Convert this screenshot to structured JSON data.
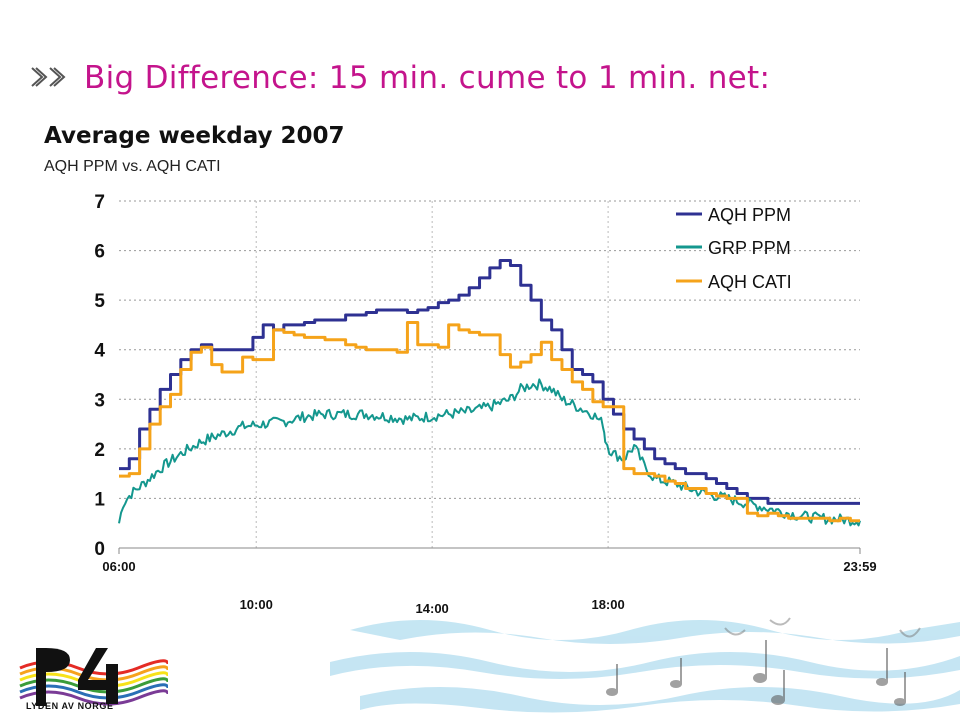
{
  "slide": {
    "title": "Big Difference: 15 min. cume to 1 min. net:",
    "bullet_icon": "double-chevron-icon"
  },
  "logo": {
    "tagline": "LYDEN AV NORGE",
    "brand_mark": "P4"
  },
  "colors": {
    "title": "#c4148c",
    "aqh_ppm": "#2e3192",
    "grp_ppm": "#14978e",
    "aqh_cati": "#f5a31a",
    "wave": "#9fd3ea"
  },
  "chart_data": {
    "type": "line",
    "title": "Average weekday 2007",
    "subtitle": "AQH PPM vs. AQH CATI",
    "xlabel": "",
    "ylabel": "",
    "ylim": [
      0,
      7
    ],
    "y_ticks": [
      0,
      1,
      2,
      3,
      4,
      5,
      6,
      7
    ],
    "xlim_hours": [
      6.0,
      23.9833
    ],
    "x_tick_labels_bottom": [
      {
        "label": "06:00",
        "hour": 6.0
      },
      {
        "label": "23:59",
        "hour": 23.9833
      }
    ],
    "x_tick_labels_lower": [
      {
        "label": "10:00",
        "hour": 10.0
      },
      {
        "label": "14:00",
        "hour": 14.0
      },
      {
        "label": "18:00",
        "hour": 18.0
      }
    ],
    "vertical_gridlines_hours": [
      9.33,
      13.6,
      17.87
    ],
    "grid": "dotted horizontal and vertical",
    "legend_position": "top-right",
    "series": [
      {
        "name": "AQH PPM",
        "style": "step",
        "color": "#2e3192",
        "x_hours": [
          6.0,
          6.25,
          6.5,
          6.75,
          7.0,
          7.25,
          7.5,
          7.75,
          8.0,
          8.25,
          8.5,
          8.75,
          9.0,
          9.25,
          9.5,
          9.75,
          10.0,
          10.25,
          10.5,
          10.75,
          11.0,
          11.25,
          11.5,
          11.75,
          12.0,
          12.25,
          12.5,
          12.75,
          13.0,
          13.25,
          13.5,
          13.75,
          14.0,
          14.25,
          14.5,
          14.75,
          15.0,
          15.25,
          15.5,
          15.75,
          16.0,
          16.25,
          16.5,
          16.75,
          17.0,
          17.25,
          17.5,
          17.75,
          18.0,
          18.25,
          18.5,
          18.75,
          19.0,
          19.25,
          19.5,
          19.75,
          20.0,
          20.25,
          20.5,
          20.75,
          21.0,
          21.25,
          21.5,
          21.75,
          22.0,
          22.25,
          22.5,
          22.75,
          23.0,
          23.25,
          23.5,
          23.75,
          24.0
        ],
        "values": [
          1.6,
          1.8,
          2.4,
          2.8,
          3.2,
          3.5,
          3.8,
          4.0,
          4.1,
          4.0,
          4.0,
          4.0,
          4.0,
          4.25,
          4.5,
          4.4,
          4.5,
          4.5,
          4.55,
          4.6,
          4.6,
          4.6,
          4.7,
          4.7,
          4.75,
          4.8,
          4.8,
          4.8,
          4.75,
          4.8,
          4.85,
          4.95,
          5.0,
          5.1,
          5.25,
          5.45,
          5.65,
          5.8,
          5.7,
          5.3,
          5.0,
          4.6,
          4.4,
          4.0,
          3.6,
          3.5,
          3.35,
          3.0,
          2.7,
          2.4,
          2.2,
          2.0,
          1.8,
          1.7,
          1.6,
          1.5,
          1.5,
          1.4,
          1.3,
          1.2,
          1.1,
          1.0,
          1.0,
          0.9,
          0.9,
          0.9,
          0.9,
          0.9,
          0.9,
          0.9,
          0.9,
          0.9,
          0.9
        ]
      },
      {
        "name": "GRP PPM",
        "style": "noisy-line",
        "color": "#14978e",
        "x_hours": [
          6.0,
          6.1,
          6.3,
          6.6,
          7.0,
          7.5,
          8.0,
          8.5,
          9.0,
          9.5,
          10.0,
          10.5,
          11.0,
          11.5,
          12.0,
          12.5,
          13.0,
          13.5,
          14.0,
          14.5,
          15.0,
          15.5,
          15.75,
          16.0,
          16.25,
          16.5,
          16.75,
          17.0,
          17.25,
          17.5,
          17.75,
          17.8,
          17.9,
          18.0,
          18.25,
          18.5,
          18.75,
          19.0,
          19.5,
          20.0,
          20.5,
          21.0,
          21.5,
          22.0,
          22.5,
          23.0,
          23.5,
          24.0
        ],
        "values": [
          0.5,
          0.9,
          1.1,
          1.3,
          1.6,
          1.9,
          2.15,
          2.3,
          2.45,
          2.5,
          2.55,
          2.65,
          2.7,
          2.7,
          2.7,
          2.65,
          2.6,
          2.65,
          2.7,
          2.75,
          2.85,
          3.0,
          3.2,
          3.3,
          3.3,
          3.2,
          3.0,
          2.9,
          2.8,
          2.7,
          2.5,
          2.2,
          2.0,
          1.9,
          1.8,
          2.05,
          1.65,
          1.4,
          1.3,
          1.15,
          1.05,
          0.95,
          0.85,
          0.75,
          0.65,
          0.6,
          0.58,
          0.55
        ]
      },
      {
        "name": "AQH CATI",
        "style": "step",
        "color": "#f5a31a",
        "x_hours": [
          6.0,
          6.25,
          6.5,
          6.75,
          7.0,
          7.25,
          7.5,
          7.75,
          8.0,
          8.25,
          8.5,
          8.75,
          9.0,
          9.25,
          9.5,
          9.75,
          10.0,
          10.25,
          10.5,
          10.75,
          11.0,
          11.25,
          11.5,
          11.75,
          12.0,
          12.25,
          12.5,
          12.75,
          13.0,
          13.25,
          13.5,
          13.75,
          14.0,
          14.25,
          14.5,
          14.75,
          15.0,
          15.25,
          15.5,
          15.75,
          16.0,
          16.25,
          16.5,
          16.75,
          17.0,
          17.25,
          17.5,
          17.75,
          18.0,
          18.25,
          18.5,
          18.75,
          19.0,
          19.25,
          19.5,
          19.75,
          20.0,
          20.25,
          20.5,
          20.75,
          21.0,
          21.25,
          21.5,
          21.75,
          22.0,
          22.25,
          22.5,
          22.75,
          23.0,
          23.25,
          23.5,
          23.75,
          24.0
        ],
        "values": [
          1.45,
          1.5,
          2.0,
          2.5,
          2.85,
          3.1,
          3.6,
          3.95,
          4.05,
          3.7,
          3.55,
          3.55,
          3.85,
          3.8,
          3.8,
          4.4,
          4.35,
          4.3,
          4.25,
          4.25,
          4.2,
          4.2,
          4.1,
          4.05,
          4.0,
          4.0,
          4.0,
          3.95,
          4.55,
          4.1,
          4.1,
          4.05,
          4.5,
          4.4,
          4.35,
          4.3,
          4.3,
          3.9,
          3.65,
          3.75,
          3.9,
          4.15,
          3.8,
          3.6,
          3.35,
          3.2,
          2.95,
          2.85,
          2.85,
          1.6,
          1.5,
          1.5,
          1.45,
          1.35,
          1.3,
          1.2,
          1.2,
          1.1,
          1.05,
          1.0,
          1.0,
          0.7,
          0.65,
          0.7,
          0.65,
          0.6,
          0.6,
          0.6,
          0.6,
          0.55,
          0.6,
          0.55,
          0.55
        ]
      }
    ]
  }
}
